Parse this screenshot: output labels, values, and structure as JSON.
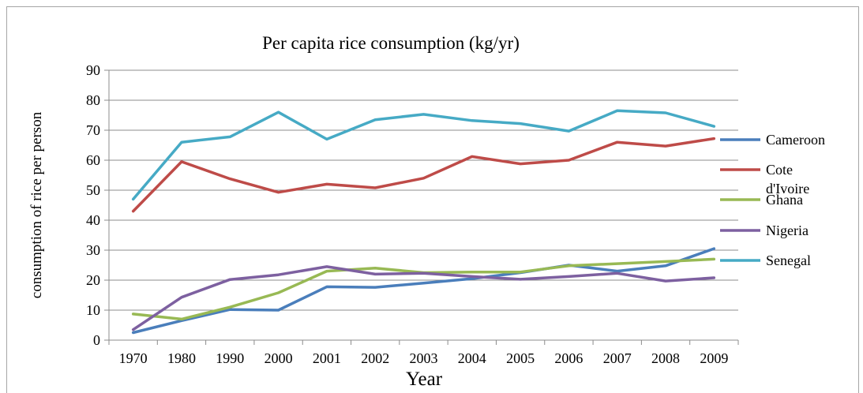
{
  "chart_data": {
    "type": "line",
    "title": "Per capita rice consumption (kg/yr)",
    "xlabel": "Year",
    "ylabel": "consumption of rice per person",
    "categories": [
      "1970",
      "1980",
      "1990",
      "2000",
      "2001",
      "2002",
      "2003",
      "2004",
      "2005",
      "2006",
      "2007",
      "2008",
      "2009"
    ],
    "ylim": [
      0,
      90
    ],
    "yticks": [
      0,
      10,
      20,
      30,
      40,
      50,
      60,
      70,
      80,
      90
    ],
    "grid": true,
    "legend_position": "right",
    "series": [
      {
        "name": "Cameroon",
        "color": "#4a7ebb",
        "values": [
          2.5,
          6.5,
          10.2,
          10.0,
          17.8,
          17.6,
          19.0,
          20.5,
          22.5,
          25.0,
          23.0,
          24.8,
          30.5
        ]
      },
      {
        "name": "Cote d'Ivoire",
        "color": "#be4b48",
        "values": [
          43.0,
          59.5,
          53.8,
          49.3,
          52.0,
          50.8,
          54.0,
          61.2,
          58.8,
          60.0,
          66.0,
          64.7,
          67.2
        ]
      },
      {
        "name": "Ghana",
        "color": "#98b954",
        "values": [
          8.7,
          7.0,
          11.0,
          15.8,
          23.0,
          24.0,
          22.5,
          22.7,
          22.7,
          24.8,
          25.5,
          26.2,
          27.0
        ]
      },
      {
        "name": "Nigeria",
        "color": "#7d60a0",
        "values": [
          3.5,
          14.3,
          20.2,
          21.8,
          24.5,
          22.0,
          22.3,
          21.2,
          20.3,
          21.2,
          22.3,
          19.7,
          20.8
        ]
      },
      {
        "name": "Senegal",
        "color": "#46aac5",
        "values": [
          47.0,
          66.0,
          67.8,
          76.0,
          67.0,
          73.5,
          75.3,
          73.2,
          72.2,
          69.7,
          76.5,
          75.8,
          71.3
        ]
      }
    ]
  }
}
